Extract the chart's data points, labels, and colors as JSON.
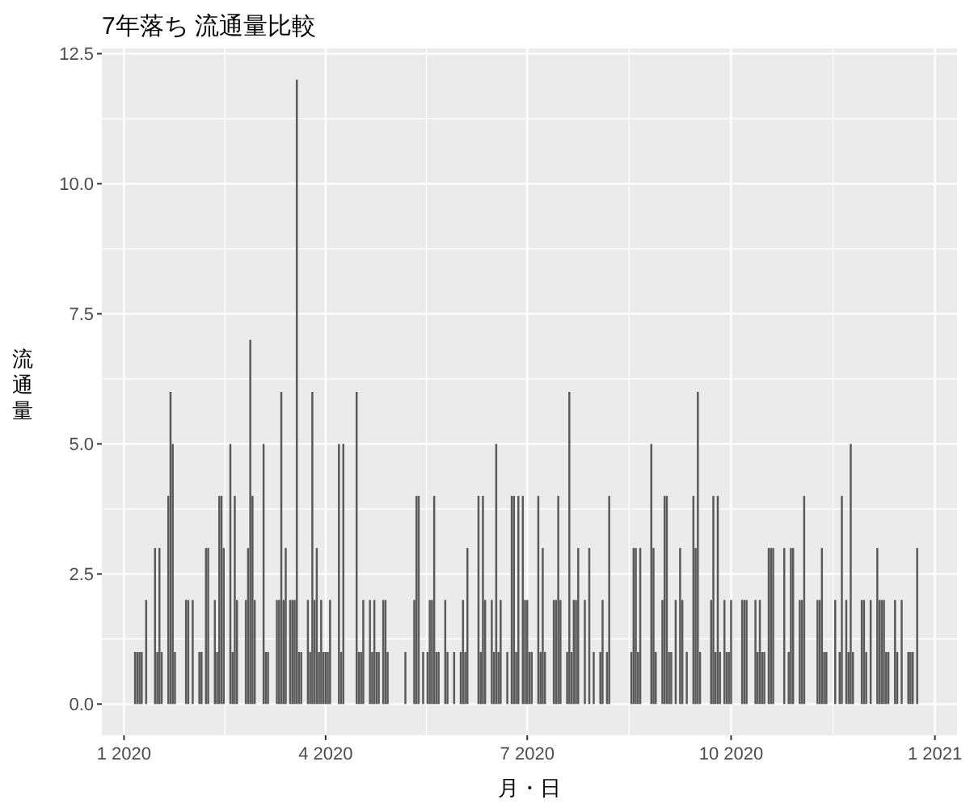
{
  "chart_data": {
    "type": "bar",
    "title": "7年落ち 流通量比較",
    "xlabel": "月・日",
    "ylabel": "流通量",
    "color": "#595959",
    "grid": true,
    "xlim": [
      "2019-12-22",
      "2021-01-11"
    ],
    "xticks": [
      {
        "value": "2020-01-01",
        "label": "1 2020"
      },
      {
        "value": "2020-04-01",
        "label": "4 2020"
      },
      {
        "value": "2020-07-01",
        "label": "7 2020"
      },
      {
        "value": "2020-10-01",
        "label": "10 2020"
      },
      {
        "value": "2021-01-01",
        "label": "1 2021"
      }
    ],
    "ylim": [
      -0.6,
      12.6
    ],
    "yticks": [
      {
        "value": 0,
        "label": "0.0"
      },
      2.5,
      {
        "value": 5,
        "label": "5.0"
      },
      7.5,
      {
        "value": 10,
        "label": "10.0"
      },
      12.5
    ],
    "x": [
      "2020-01-06",
      "2020-01-07",
      "2020-01-08",
      "2020-01-09",
      "2020-01-11",
      "2020-01-15",
      "2020-01-16",
      "2020-01-17",
      "2020-01-18",
      "2020-01-21",
      "2020-01-22",
      "2020-01-23",
      "2020-01-24",
      "2020-01-29",
      "2020-01-30",
      "2020-02-01",
      "2020-02-04",
      "2020-02-05",
      "2020-02-07",
      "2020-02-08",
      "2020-02-11",
      "2020-02-12",
      "2020-02-13",
      "2020-02-14",
      "2020-02-15",
      "2020-02-18",
      "2020-02-19",
      "2020-02-20",
      "2020-02-21",
      "2020-02-25",
      "2020-02-26",
      "2020-02-27",
      "2020-02-28",
      "2020-02-29",
      "2020-03-04",
      "2020-03-05",
      "2020-03-06",
      "2020-03-10",
      "2020-03-11",
      "2020-03-12",
      "2020-03-13",
      "2020-03-14",
      "2020-03-16",
      "2020-03-17",
      "2020-03-18",
      "2020-03-19",
      "2020-03-20",
      "2020-03-21",
      "2020-03-24",
      "2020-03-25",
      "2020-03-26",
      "2020-03-27",
      "2020-03-28",
      "2020-03-29",
      "2020-03-30",
      "2020-03-31",
      "2020-04-01",
      "2020-04-02",
      "2020-04-03",
      "2020-04-07",
      "2020-04-08",
      "2020-04-09",
      "2020-04-15",
      "2020-04-16",
      "2020-04-17",
      "2020-04-18",
      "2020-04-21",
      "2020-04-22",
      "2020-04-23",
      "2020-04-24",
      "2020-04-25",
      "2020-04-27",
      "2020-04-28",
      "2020-04-29",
      "2020-05-07",
      "2020-05-11",
      "2020-05-12",
      "2020-05-13",
      "2020-05-15",
      "2020-05-17",
      "2020-05-18",
      "2020-05-19",
      "2020-05-20",
      "2020-05-21",
      "2020-05-22",
      "2020-05-25",
      "2020-05-26",
      "2020-05-29",
      "2020-06-01",
      "2020-06-02",
      "2020-06-03",
      "2020-06-04",
      "2020-06-09",
      "2020-06-10",
      "2020-06-11",
      "2020-06-12",
      "2020-06-15",
      "2020-06-16",
      "2020-06-17",
      "2020-06-18",
      "2020-06-19",
      "2020-06-22",
      "2020-06-24",
      "2020-06-25",
      "2020-06-26",
      "2020-06-27",
      "2020-06-29",
      "2020-06-30",
      "2020-07-01",
      "2020-07-02",
      "2020-07-03",
      "2020-07-06",
      "2020-07-07",
      "2020-07-08",
      "2020-07-09",
      "2020-07-13",
      "2020-07-14",
      "2020-07-15",
      "2020-07-16",
      "2020-07-19",
      "2020-07-20",
      "2020-07-21",
      "2020-07-22",
      "2020-07-23",
      "2020-07-24",
      "2020-07-27",
      "2020-07-29",
      "2020-07-31",
      "2020-08-03",
      "2020-08-04",
      "2020-08-06",
      "2020-08-07",
      "2020-08-17",
      "2020-08-18",
      "2020-08-19",
      "2020-08-20",
      "2020-08-21",
      "2020-08-26",
      "2020-08-27",
      "2020-08-28",
      "2020-08-31",
      "2020-09-01",
      "2020-09-02",
      "2020-09-03",
      "2020-09-04",
      "2020-09-06",
      "2020-09-08",
      "2020-09-09",
      "2020-09-11",
      "2020-09-14",
      "2020-09-15",
      "2020-09-16",
      "2020-09-17",
      "2020-09-22",
      "2020-09-23",
      "2020-09-24",
      "2020-09-25",
      "2020-09-26",
      "2020-09-28",
      "2020-09-29",
      "2020-09-30",
      "2020-10-01",
      "2020-10-06",
      "2020-10-07",
      "2020-10-08",
      "2020-10-12",
      "2020-10-13",
      "2020-10-14",
      "2020-10-15",
      "2020-10-16",
      "2020-10-18",
      "2020-10-19",
      "2020-10-20",
      "2020-10-25",
      "2020-10-27",
      "2020-10-28",
      "2020-10-29",
      "2020-11-01",
      "2020-11-02",
      "2020-11-03",
      "2020-11-09",
      "2020-11-10",
      "2020-11-11",
      "2020-11-12",
      "2020-11-13",
      "2020-11-17",
      "2020-11-19",
      "2020-11-20",
      "2020-11-22",
      "2020-11-23",
      "2020-11-24",
      "2020-11-25",
      "2020-11-29",
      "2020-11-30",
      "2020-12-01",
      "2020-12-03",
      "2020-12-06",
      "2020-12-07",
      "2020-12-08",
      "2020-12-09",
      "2020-12-10",
      "2020-12-11",
      "2020-12-14",
      "2020-12-15",
      "2020-12-17",
      "2020-12-20",
      "2020-12-21",
      "2020-12-22",
      "2020-12-24"
    ],
    "values": [
      1,
      1,
      1,
      1,
      2,
      3,
      1,
      3,
      1,
      4,
      6,
      5,
      1,
      2,
      2,
      2,
      1,
      1,
      3,
      3,
      2,
      1,
      4,
      4,
      3,
      5,
      1,
      4,
      2,
      2,
      3,
      7,
      4,
      2,
      5,
      1,
      1,
      2,
      2,
      6,
      2,
      3,
      2,
      2,
      2,
      12,
      1,
      1,
      2,
      1,
      6,
      2,
      3,
      1,
      2,
      1,
      1,
      1,
      2,
      5,
      1,
      5,
      6,
      1,
      1,
      2,
      2,
      1,
      2,
      1,
      1,
      2,
      2,
      1,
      1,
      2,
      4,
      4,
      1,
      1,
      2,
      2,
      4,
      1,
      1,
      2,
      1,
      1,
      1,
      2,
      1,
      3,
      4,
      1,
      4,
      2,
      2,
      1,
      5,
      1,
      2,
      1,
      4,
      4,
      1,
      4,
      4,
      2,
      2,
      1,
      1,
      4,
      1,
      3,
      1,
      2,
      2,
      4,
      2,
      1,
      6,
      1,
      2,
      2,
      3,
      2,
      3,
      1,
      1,
      2,
      1,
      4,
      1,
      3,
      3,
      1,
      3,
      5,
      3,
      1,
      2,
      4,
      4,
      1,
      1,
      2,
      3,
      2,
      1,
      4,
      3,
      6,
      1,
      2,
      4,
      1,
      4,
      1,
      2,
      1,
      1,
      2,
      2,
      2,
      2,
      2,
      1,
      2,
      1,
      1,
      3,
      3,
      3,
      3,
      1,
      3,
      3,
      2,
      2,
      4,
      2,
      2,
      3,
      1,
      1,
      2,
      1,
      4,
      2,
      1,
      5,
      1,
      2,
      2,
      1,
      2,
      3,
      2,
      2,
      2,
      1,
      1,
      2,
      1,
      2,
      1,
      1,
      1,
      3
    ]
  }
}
